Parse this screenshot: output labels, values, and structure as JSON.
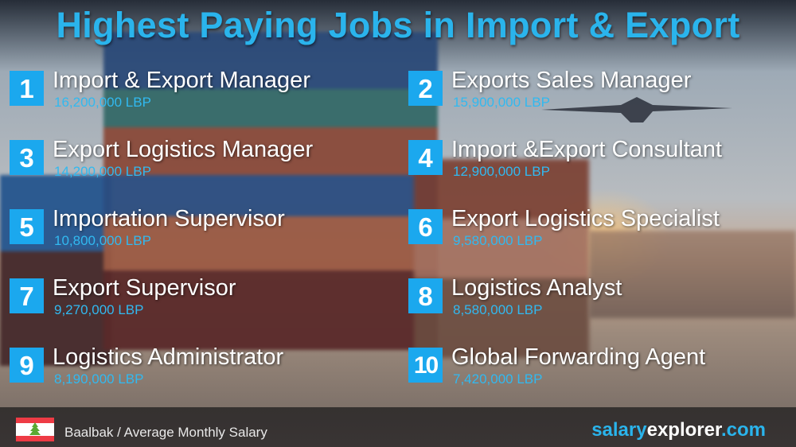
{
  "title": "Highest Paying Jobs in Import & Export",
  "colors": {
    "accent": "#1ba8ee",
    "salary": "#31b9f0",
    "title": "#2ab4ec"
  },
  "jobs": [
    {
      "rank": "1",
      "title": "Import & Export Manager",
      "salary": "16,200,000 LBP"
    },
    {
      "rank": "2",
      "title": "Exports Sales Manager",
      "salary": "15,900,000 LBP"
    },
    {
      "rank": "3",
      "title": "Export Logistics Manager",
      "salary": "14,200,000 LBP"
    },
    {
      "rank": "4",
      "title": "Import &Export Consultant",
      "salary": "12,900,000 LBP"
    },
    {
      "rank": "5",
      "title": "Importation Supervisor",
      "salary": "10,800,000 LBP"
    },
    {
      "rank": "6",
      "title": "Export Logistics Specialist",
      "salary": "9,580,000 LBP"
    },
    {
      "rank": "7",
      "title": "Export Supervisor",
      "salary": "9,270,000 LBP"
    },
    {
      "rank": "8",
      "title": "Logistics Analyst",
      "salary": "8,580,000 LBP"
    },
    {
      "rank": "9",
      "title": "Logistics Administrator",
      "salary": "8,190,000 LBP"
    },
    {
      "rank": "10",
      "title": "Global Forwarding Agent",
      "salary": "7,420,000 LBP"
    }
  ],
  "footer": {
    "flag_icon": "lebanon-flag-icon",
    "location": "Baalbak / Average Monthly Salary",
    "brand": {
      "part1": "salary",
      "part2": "explorer",
      "part3": ".com"
    }
  }
}
